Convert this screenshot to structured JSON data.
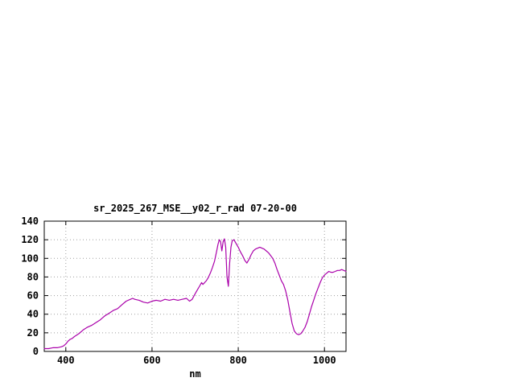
{
  "chart_data": {
    "type": "line",
    "title": "sr_2025_267_MSE__y02_r_rad 07-20-00",
    "xlabel": "nm",
    "ylabel": "",
    "xlim": [
      350,
      1050
    ],
    "ylim": [
      0,
      140
    ],
    "x_ticks": [
      400,
      600,
      800,
      1000
    ],
    "y_ticks": [
      0,
      20,
      40,
      60,
      80,
      100,
      120,
      140
    ],
    "grid": true,
    "legend": "none",
    "line_color": "#aa00aa",
    "grid_color": "#a0a0a0",
    "border_color": "#000000",
    "series": [
      {
        "name": "sr_2025_267_MSE__y02_r_rad",
        "x": [
          350,
          360,
          370,
          380,
          390,
          395,
          400,
          405,
          410,
          415,
          420,
          430,
          440,
          450,
          460,
          470,
          480,
          490,
          500,
          510,
          520,
          530,
          540,
          550,
          555,
          560,
          570,
          580,
          590,
          600,
          610,
          620,
          630,
          640,
          650,
          660,
          670,
          680,
          687,
          693,
          700,
          705,
          710,
          715,
          718,
          722,
          726,
          730,
          735,
          740,
          745,
          750,
          753,
          756,
          759,
          762,
          765,
          768,
          771,
          774,
          777,
          780,
          783,
          786,
          790,
          795,
          800,
          805,
          810,
          815,
          820,
          825,
          830,
          835,
          840,
          845,
          850,
          855,
          860,
          865,
          870,
          875,
          880,
          885,
          890,
          895,
          900,
          905,
          910,
          915,
          920,
          925,
          930,
          935,
          940,
          945,
          950,
          955,
          960,
          965,
          970,
          975,
          980,
          985,
          990,
          995,
          1000,
          1005,
          1010,
          1015,
          1020,
          1025,
          1030,
          1035,
          1040,
          1045,
          1050
        ],
        "y": [
          3,
          3,
          4,
          4,
          5,
          6,
          8,
          11,
          13,
          14,
          16,
          19,
          23,
          26,
          28,
          31,
          34,
          38,
          41,
          44,
          46,
          50,
          54,
          56,
          57,
          56,
          55,
          53,
          52,
          54,
          55,
          54,
          56,
          55,
          56,
          55,
          56,
          57,
          54,
          56,
          62,
          66,
          70,
          74,
          72,
          74,
          76,
          79,
          84,
          90,
          97,
          108,
          115,
          120,
          118,
          108,
          118,
          121,
          112,
          80,
          70,
          95,
          112,
          119,
          120,
          116,
          112,
          107,
          103,
          98,
          95,
          99,
          104,
          108,
          110,
          111,
          112,
          111,
          110,
          108,
          106,
          103,
          100,
          95,
          88,
          82,
          76,
          72,
          65,
          55,
          42,
          30,
          22,
          19,
          18,
          19,
          22,
          26,
          32,
          40,
          48,
          55,
          62,
          68,
          74,
          79,
          82,
          84,
          86,
          85,
          85,
          86,
          87,
          87,
          88,
          87,
          86
        ]
      }
    ]
  }
}
